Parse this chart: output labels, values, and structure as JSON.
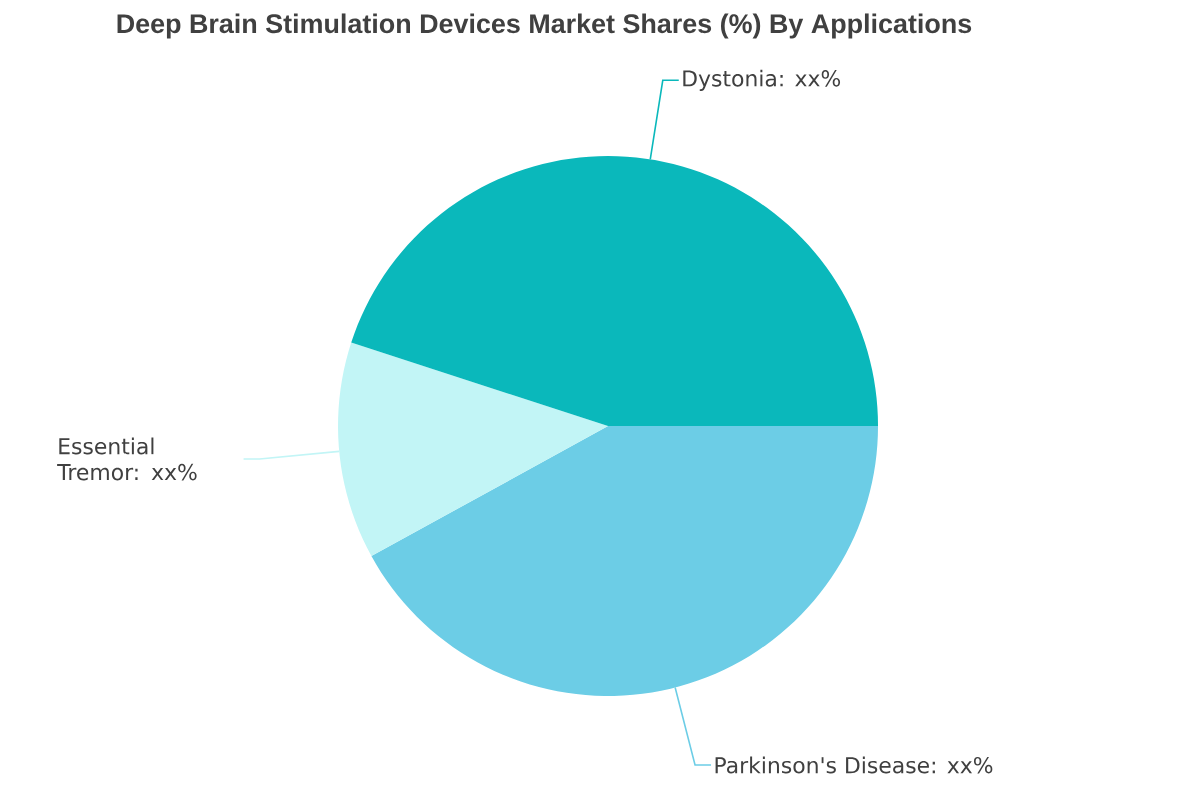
{
  "chart_data": {
    "type": "pie",
    "title": "Deep Brain Stimulation Devices Market Shares (%) By Applications",
    "categories": [
      "Parkinson's Disease: xx%",
      "Essential Tremor: xx%",
      "Dystonia: xx%"
    ],
    "values": [
      42,
      13,
      45
    ],
    "colors": [
      "#6ccde6",
      "#c2f5f6",
      "#0ab8bb"
    ]
  }
}
